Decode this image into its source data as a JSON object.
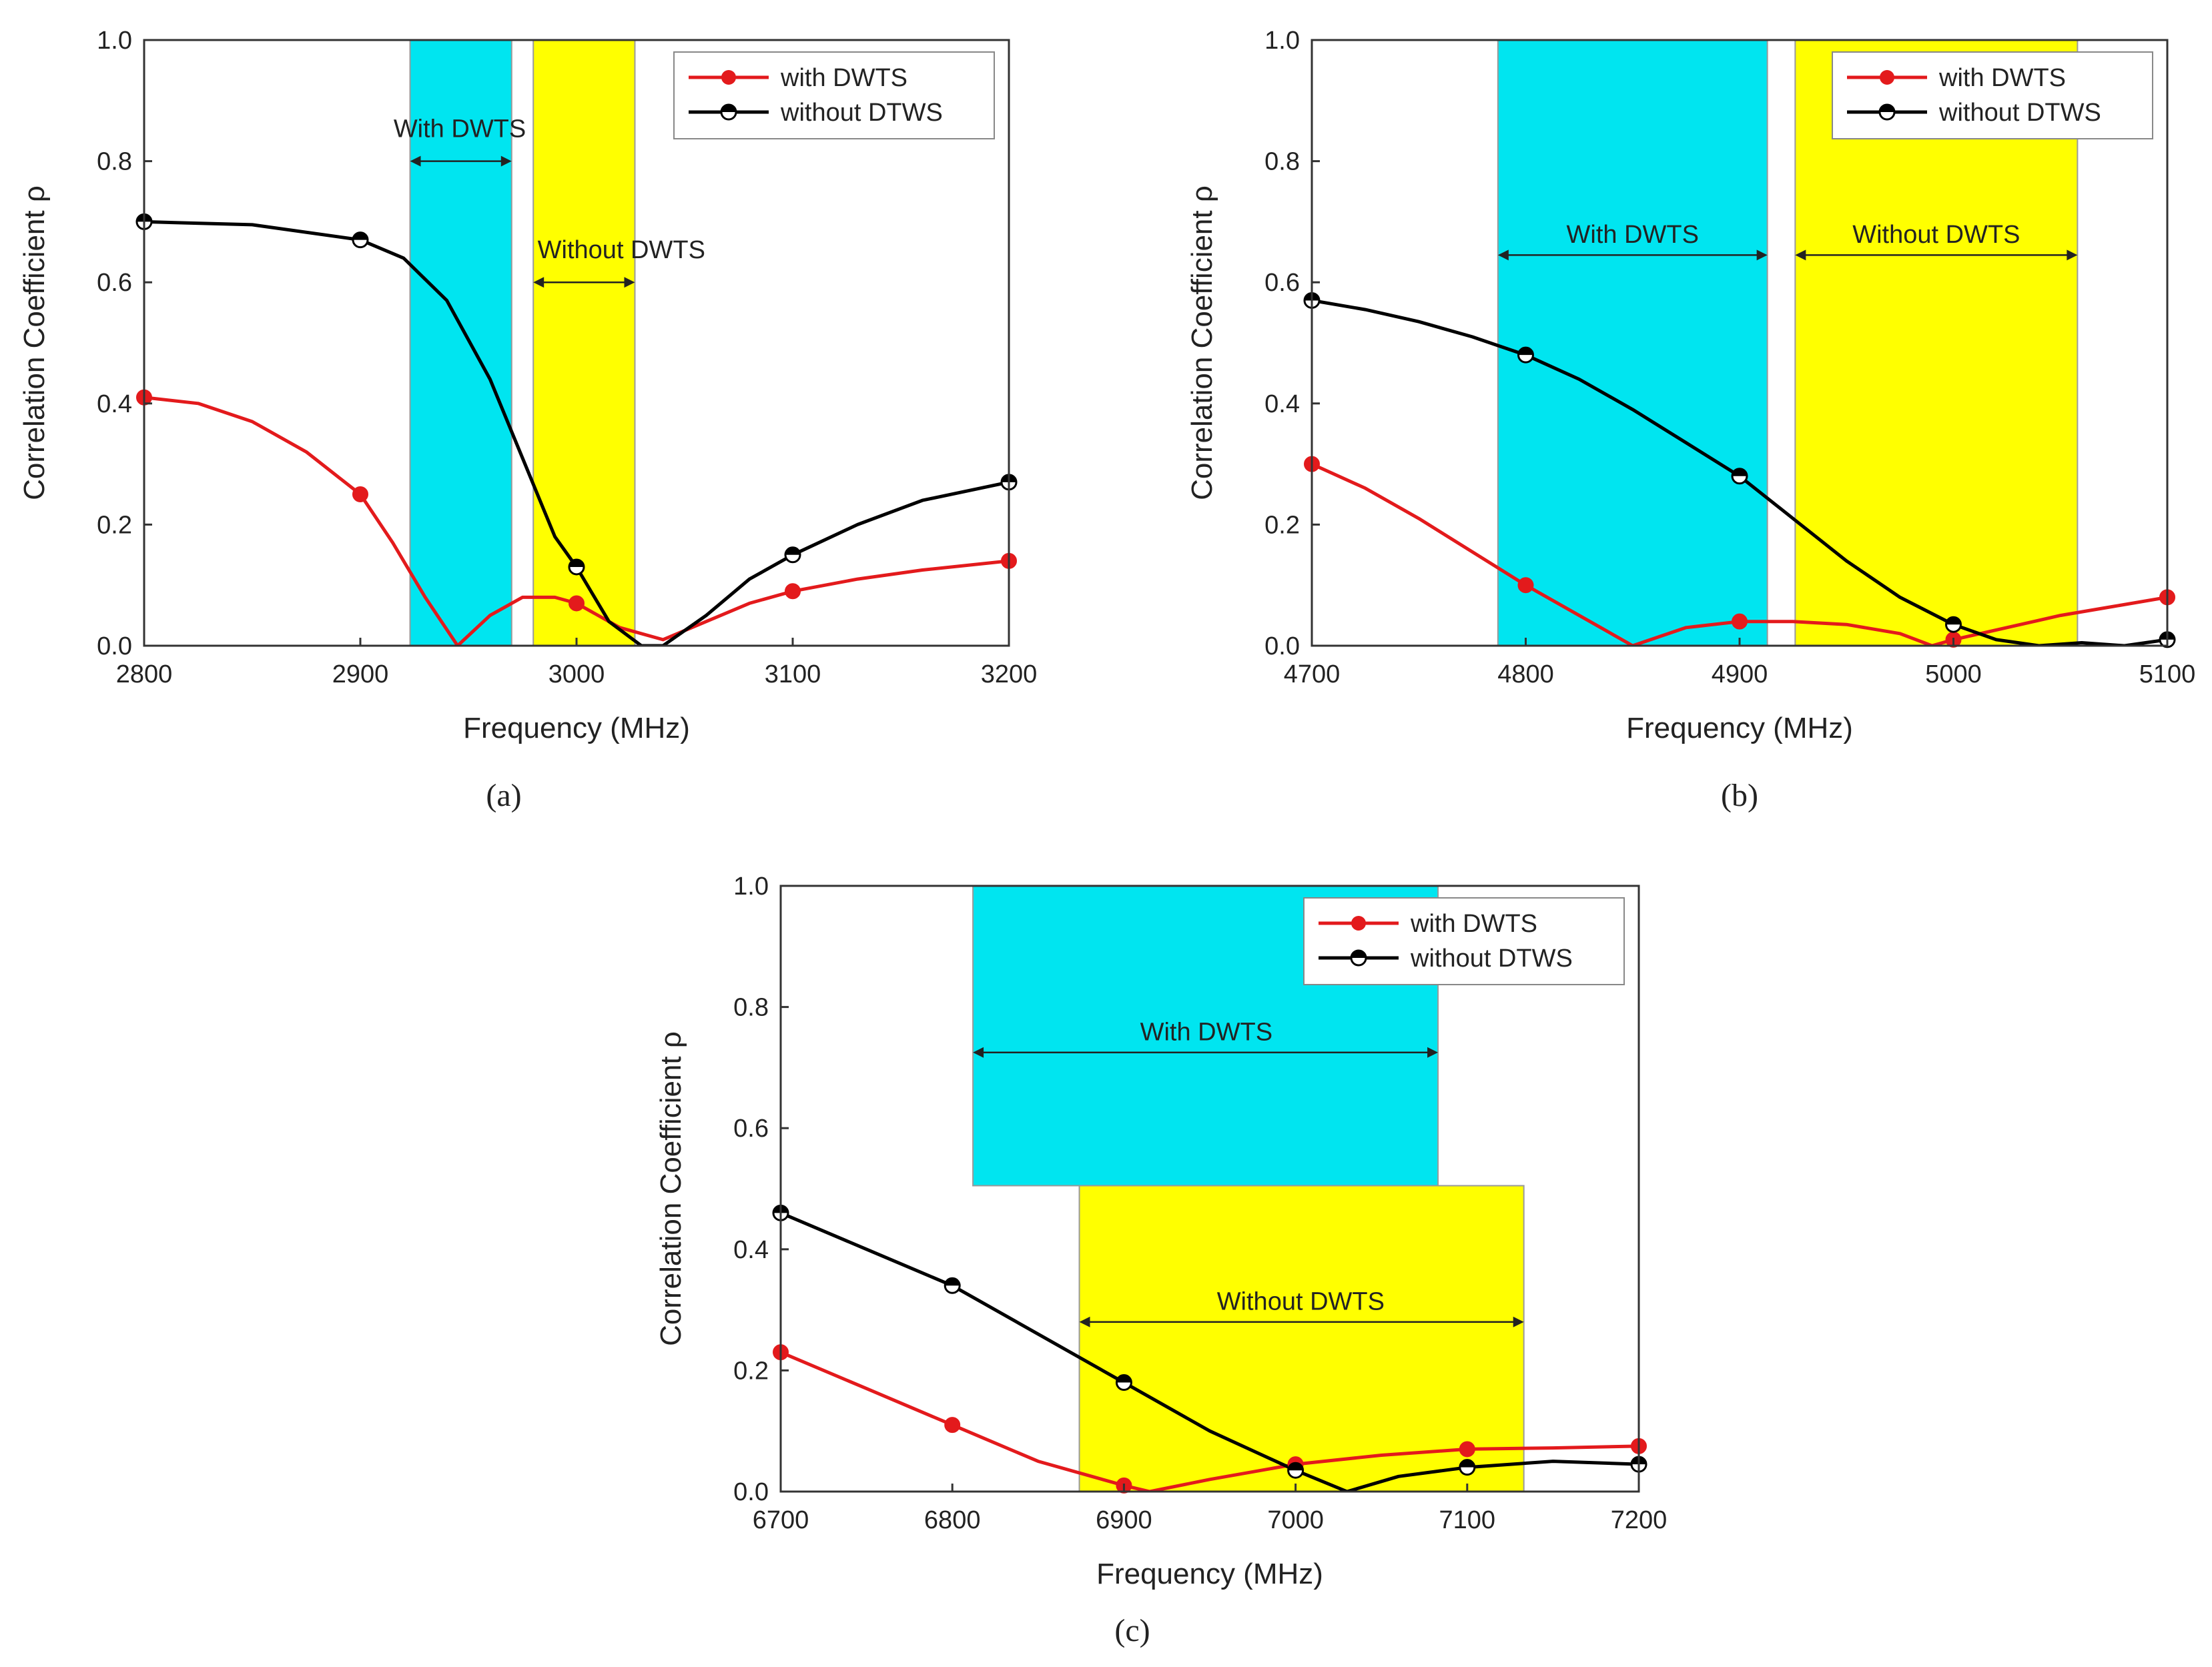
{
  "chart_data": [
    {
      "type": "line",
      "caption": "(a)",
      "xlabel": "Frequency (MHz)",
      "ylabel": "Correlation Coefficient ρ",
      "xlim": [
        2800,
        3200
      ],
      "ylim": [
        0,
        1.0
      ],
      "x_ticks": [
        2800,
        2900,
        3000,
        3100,
        3200
      ],
      "y_ticks": [
        0.0,
        0.2,
        0.4,
        0.6,
        0.8,
        1.0
      ],
      "legend": {
        "position": "top-right",
        "entries": [
          "with DWTS",
          "without DTWS"
        ]
      },
      "colors": {
        "with": "#e31a1c",
        "without": "#000000",
        "band_with": "#00e5f0",
        "band_without": "#ffff00"
      },
      "bands": [
        {
          "label": "With DWTS",
          "x0": 2923,
          "x1": 2970,
          "y0": 0.0,
          "y1": 1.0,
          "color": "#00e5f0",
          "arrow_y": 0.8,
          "text_x": 2946,
          "text_y": 0.84,
          "text_anchor": "middle"
        },
        {
          "label": "Without DWTS",
          "x0": 2980,
          "x1": 3027,
          "y0": 0.0,
          "y1": 1.0,
          "color": "#ffff00",
          "arrow_y": 0.6,
          "text_x": 2982,
          "text_y": 0.64,
          "text_anchor": "start"
        }
      ],
      "series": [
        {
          "name": "with DWTS",
          "color": "#e31a1c",
          "marker": "filled",
          "x": [
            2800,
            2900,
            3000,
            3100,
            3200
          ],
          "y": [
            0.41,
            0.25,
            0.07,
            0.09,
            0.14
          ],
          "curve_x": [
            2800,
            2825,
            2850,
            2875,
            2900,
            2915,
            2930,
            2945,
            2960,
            2975,
            2990,
            3000,
            3020,
            3040,
            3060,
            3080,
            3100,
            3130,
            3160,
            3200
          ],
          "curve_y": [
            0.41,
            0.4,
            0.37,
            0.32,
            0.25,
            0.17,
            0.08,
            0.0,
            0.05,
            0.08,
            0.08,
            0.07,
            0.03,
            0.01,
            0.04,
            0.07,
            0.09,
            0.11,
            0.125,
            0.14
          ]
        },
        {
          "name": "without DTWS",
          "color": "#000000",
          "marker": "half",
          "x": [
            2800,
            2900,
            3000,
            3100,
            3200
          ],
          "y": [
            0.7,
            0.67,
            0.13,
            0.15,
            0.27
          ],
          "curve_x": [
            2800,
            2850,
            2900,
            2920,
            2940,
            2960,
            2975,
            2990,
            3000,
            3015,
            3030,
            3040,
            3060,
            3080,
            3100,
            3130,
            3160,
            3200
          ],
          "curve_y": [
            0.7,
            0.695,
            0.67,
            0.64,
            0.57,
            0.44,
            0.31,
            0.18,
            0.13,
            0.04,
            0.0,
            0.0,
            0.05,
            0.11,
            0.15,
            0.2,
            0.24,
            0.27
          ]
        }
      ]
    },
    {
      "type": "line",
      "caption": "(b)",
      "xlabel": "Frequency (MHz)",
      "ylabel": "Correlation Coefficient ρ",
      "xlim": [
        4700,
        5100
      ],
      "ylim": [
        0,
        1.0
      ],
      "x_ticks": [
        4700,
        4800,
        4900,
        5000,
        5100
      ],
      "y_ticks": [
        0.0,
        0.2,
        0.4,
        0.6,
        0.8,
        1.0
      ],
      "legend": {
        "position": "top-right",
        "entries": [
          "with DWTS",
          "without DTWS"
        ]
      },
      "colors": {
        "with": "#e31a1c",
        "without": "#000000",
        "band_with": "#00e5f0",
        "band_without": "#ffff00"
      },
      "bands": [
        {
          "label": "With DWTS",
          "x0": 4787,
          "x1": 4913,
          "y0": 0.0,
          "y1": 1.0,
          "color": "#00e5f0",
          "arrow_y": 0.645,
          "text_x": 4850,
          "text_y": 0.665,
          "text_anchor": "middle"
        },
        {
          "label": "Without DWTS",
          "x0": 4926,
          "x1": 5058,
          "y0": 0.0,
          "y1": 1.0,
          "color": "#ffff00",
          "arrow_y": 0.645,
          "text_x": 4992,
          "text_y": 0.665,
          "text_anchor": "middle"
        }
      ],
      "series": [
        {
          "name": "with DWTS",
          "color": "#e31a1c",
          "marker": "filled",
          "x": [
            4700,
            4800,
            4900,
            5000,
            5100
          ],
          "y": [
            0.3,
            0.1,
            0.04,
            0.01,
            0.08
          ],
          "curve_x": [
            4700,
            4725,
            4750,
            4775,
            4800,
            4825,
            4850,
            4875,
            4900,
            4925,
            4950,
            4975,
            4990,
            5000,
            5025,
            5050,
            5075,
            5100
          ],
          "curve_y": [
            0.3,
            0.26,
            0.21,
            0.155,
            0.1,
            0.05,
            0.0,
            0.03,
            0.04,
            0.04,
            0.035,
            0.02,
            0.0,
            0.01,
            0.03,
            0.05,
            0.065,
            0.08
          ]
        },
        {
          "name": "without DTWS",
          "color": "#000000",
          "marker": "half",
          "x": [
            4700,
            4800,
            4900,
            5000,
            5100
          ],
          "y": [
            0.57,
            0.48,
            0.28,
            0.035,
            0.01
          ],
          "curve_x": [
            4700,
            4725,
            4750,
            4775,
            4800,
            4825,
            4850,
            4875,
            4900,
            4925,
            4950,
            4975,
            5000,
            5020,
            5040,
            5060,
            5080,
            5100
          ],
          "curve_y": [
            0.57,
            0.555,
            0.535,
            0.51,
            0.48,
            0.44,
            0.39,
            0.335,
            0.28,
            0.21,
            0.14,
            0.08,
            0.035,
            0.01,
            0.0,
            0.005,
            0.0,
            0.01
          ]
        }
      ]
    },
    {
      "type": "line",
      "caption": "(c)",
      "xlabel": "Frequency (MHz)",
      "ylabel": "Correlation Coefficient ρ",
      "xlim": [
        6700,
        7200
      ],
      "ylim": [
        0,
        1.0
      ],
      "x_ticks": [
        6700,
        6800,
        6900,
        7000,
        7100,
        7200
      ],
      "y_ticks": [
        0.0,
        0.2,
        0.4,
        0.6,
        0.8,
        1.0
      ],
      "legend": {
        "position": "top-right",
        "entries": [
          "with DWTS",
          "without DTWS"
        ]
      },
      "colors": {
        "with": "#e31a1c",
        "without": "#000000",
        "band_with": "#00e5f0",
        "band_without": "#ffff00"
      },
      "bands": [
        {
          "label": "With DWTS",
          "x0": 6812,
          "x1": 7083,
          "y0": 0.505,
          "y1": 1.0,
          "color": "#00e5f0",
          "arrow_y": 0.725,
          "text_x": 6948,
          "text_y": 0.745,
          "text_anchor": "middle"
        },
        {
          "label": "Without DWTS",
          "x0": 6874,
          "x1": 7133,
          "y0": 0.0,
          "y1": 0.505,
          "color": "#ffff00",
          "arrow_y": 0.28,
          "text_x": 7003,
          "text_y": 0.3,
          "text_anchor": "middle"
        }
      ],
      "series": [
        {
          "name": "with DWTS",
          "color": "#e31a1c",
          "marker": "filled",
          "x": [
            6700,
            6800,
            6900,
            7000,
            7100,
            7200
          ],
          "y": [
            0.23,
            0.11,
            0.01,
            0.045,
            0.07,
            0.075
          ],
          "curve_x": [
            6700,
            6750,
            6800,
            6850,
            6900,
            6915,
            6950,
            7000,
            7050,
            7100,
            7150,
            7200
          ],
          "curve_y": [
            0.23,
            0.17,
            0.11,
            0.05,
            0.01,
            0.0,
            0.02,
            0.045,
            0.06,
            0.07,
            0.072,
            0.075
          ]
        },
        {
          "name": "without DTWS",
          "color": "#000000",
          "marker": "half",
          "x": [
            6700,
            6800,
            6900,
            7000,
            7100,
            7200
          ],
          "y": [
            0.46,
            0.34,
            0.18,
            0.035,
            0.04,
            0.045
          ],
          "curve_x": [
            6700,
            6750,
            6800,
            6850,
            6900,
            6950,
            7000,
            7030,
            7060,
            7100,
            7150,
            7200
          ],
          "curve_y": [
            0.46,
            0.4,
            0.34,
            0.26,
            0.18,
            0.1,
            0.035,
            0.0,
            0.025,
            0.04,
            0.05,
            0.045
          ]
        }
      ]
    }
  ]
}
